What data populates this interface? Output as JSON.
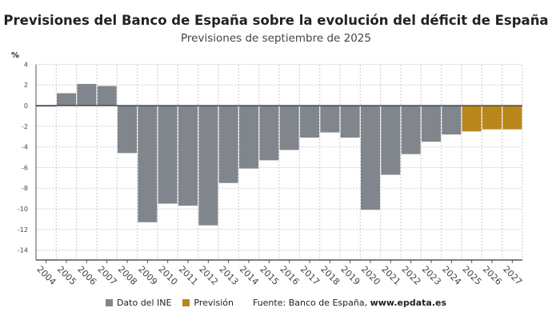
{
  "chart_data": {
    "type": "bar",
    "title": "Previsiones del Banco de España sobre la evolución del déficit de España",
    "subtitle": "Previsiones de septiembre de 2025",
    "ylabel": "%",
    "ylim": [
      -15,
      4
    ],
    "yticks": [
      4,
      2,
      0,
      -2,
      -4,
      -6,
      -8,
      -10,
      -12,
      -14
    ],
    "grid": true,
    "categories": [
      "2004",
      "2005",
      "2006",
      "2007",
      "2008",
      "2009",
      "2010",
      "2011",
      "2012",
      "2013",
      "2014",
      "2015",
      "2016",
      "2017",
      "2018",
      "2019",
      "2020",
      "2021",
      "2022",
      "2023",
      "2024",
      "2025",
      "2026",
      "2027"
    ],
    "values": [
      -0.1,
      1.2,
      2.1,
      1.9,
      -4.6,
      -11.3,
      -9.5,
      -9.7,
      -11.6,
      -7.5,
      -6.1,
      -5.3,
      -4.3,
      -3.1,
      -2.6,
      -3.1,
      -10.1,
      -6.7,
      -4.7,
      -3.5,
      -2.8,
      -2.5,
      -2.3,
      -2.3
    ],
    "kind": [
      "ine",
      "ine",
      "ine",
      "ine",
      "ine",
      "ine",
      "ine",
      "ine",
      "ine",
      "ine",
      "ine",
      "ine",
      "ine",
      "ine",
      "ine",
      "ine",
      "ine",
      "ine",
      "ine",
      "ine",
      "ine",
      "prev",
      "prev",
      "prev"
    ],
    "series": [
      {
        "name": "Dato del INE",
        "color": "#80868b"
      },
      {
        "name": "Previsión",
        "color": "#b8861b"
      }
    ],
    "legend_position": "bottom"
  },
  "source_label": "Fuente: Banco de España, ",
  "source_site": "www.epdata.es"
}
